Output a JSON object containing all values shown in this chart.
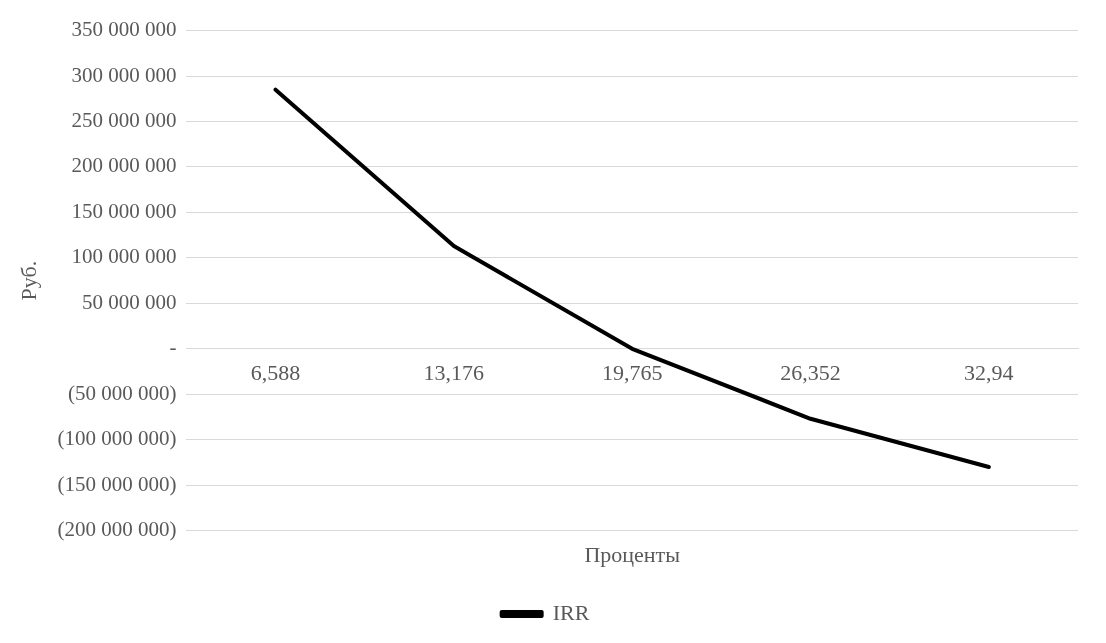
{
  "chart_data": {
    "type": "line",
    "xlabel": "Проценты",
    "ylabel": "Руб.",
    "categories": [
      "6,588",
      "13,176",
      "19,765",
      "26,352",
      "32,94"
    ],
    "series": [
      {
        "name": "IRR",
        "color": "#000000",
        "values": [
          285000000,
          113000000,
          0,
          -77000000,
          -130000000
        ]
      }
    ],
    "ylim": [
      -200000000,
      350000000
    ],
    "yticks": [
      {
        "value": -200000000,
        "label": "(200 000 000)"
      },
      {
        "value": -150000000,
        "label": "(150 000 000)"
      },
      {
        "value": -100000000,
        "label": "(100 000 000)"
      },
      {
        "value": -50000000,
        "label": "(50 000 000)"
      },
      {
        "value": 0,
        "label": "-"
      },
      {
        "value": 50000000,
        "label": "50 000 000"
      },
      {
        "value": 100000000,
        "label": "100 000 000"
      },
      {
        "value": 150000000,
        "label": "150 000 000"
      },
      {
        "value": 200000000,
        "label": "200 000 000"
      },
      {
        "value": 250000000,
        "label": "250 000 000"
      },
      {
        "value": 300000000,
        "label": "300 000 000"
      },
      {
        "value": 350000000,
        "label": "350 000 000"
      }
    ],
    "grid": "y",
    "legend": "bottom",
    "marker": "none",
    "line_style": "solid"
  }
}
